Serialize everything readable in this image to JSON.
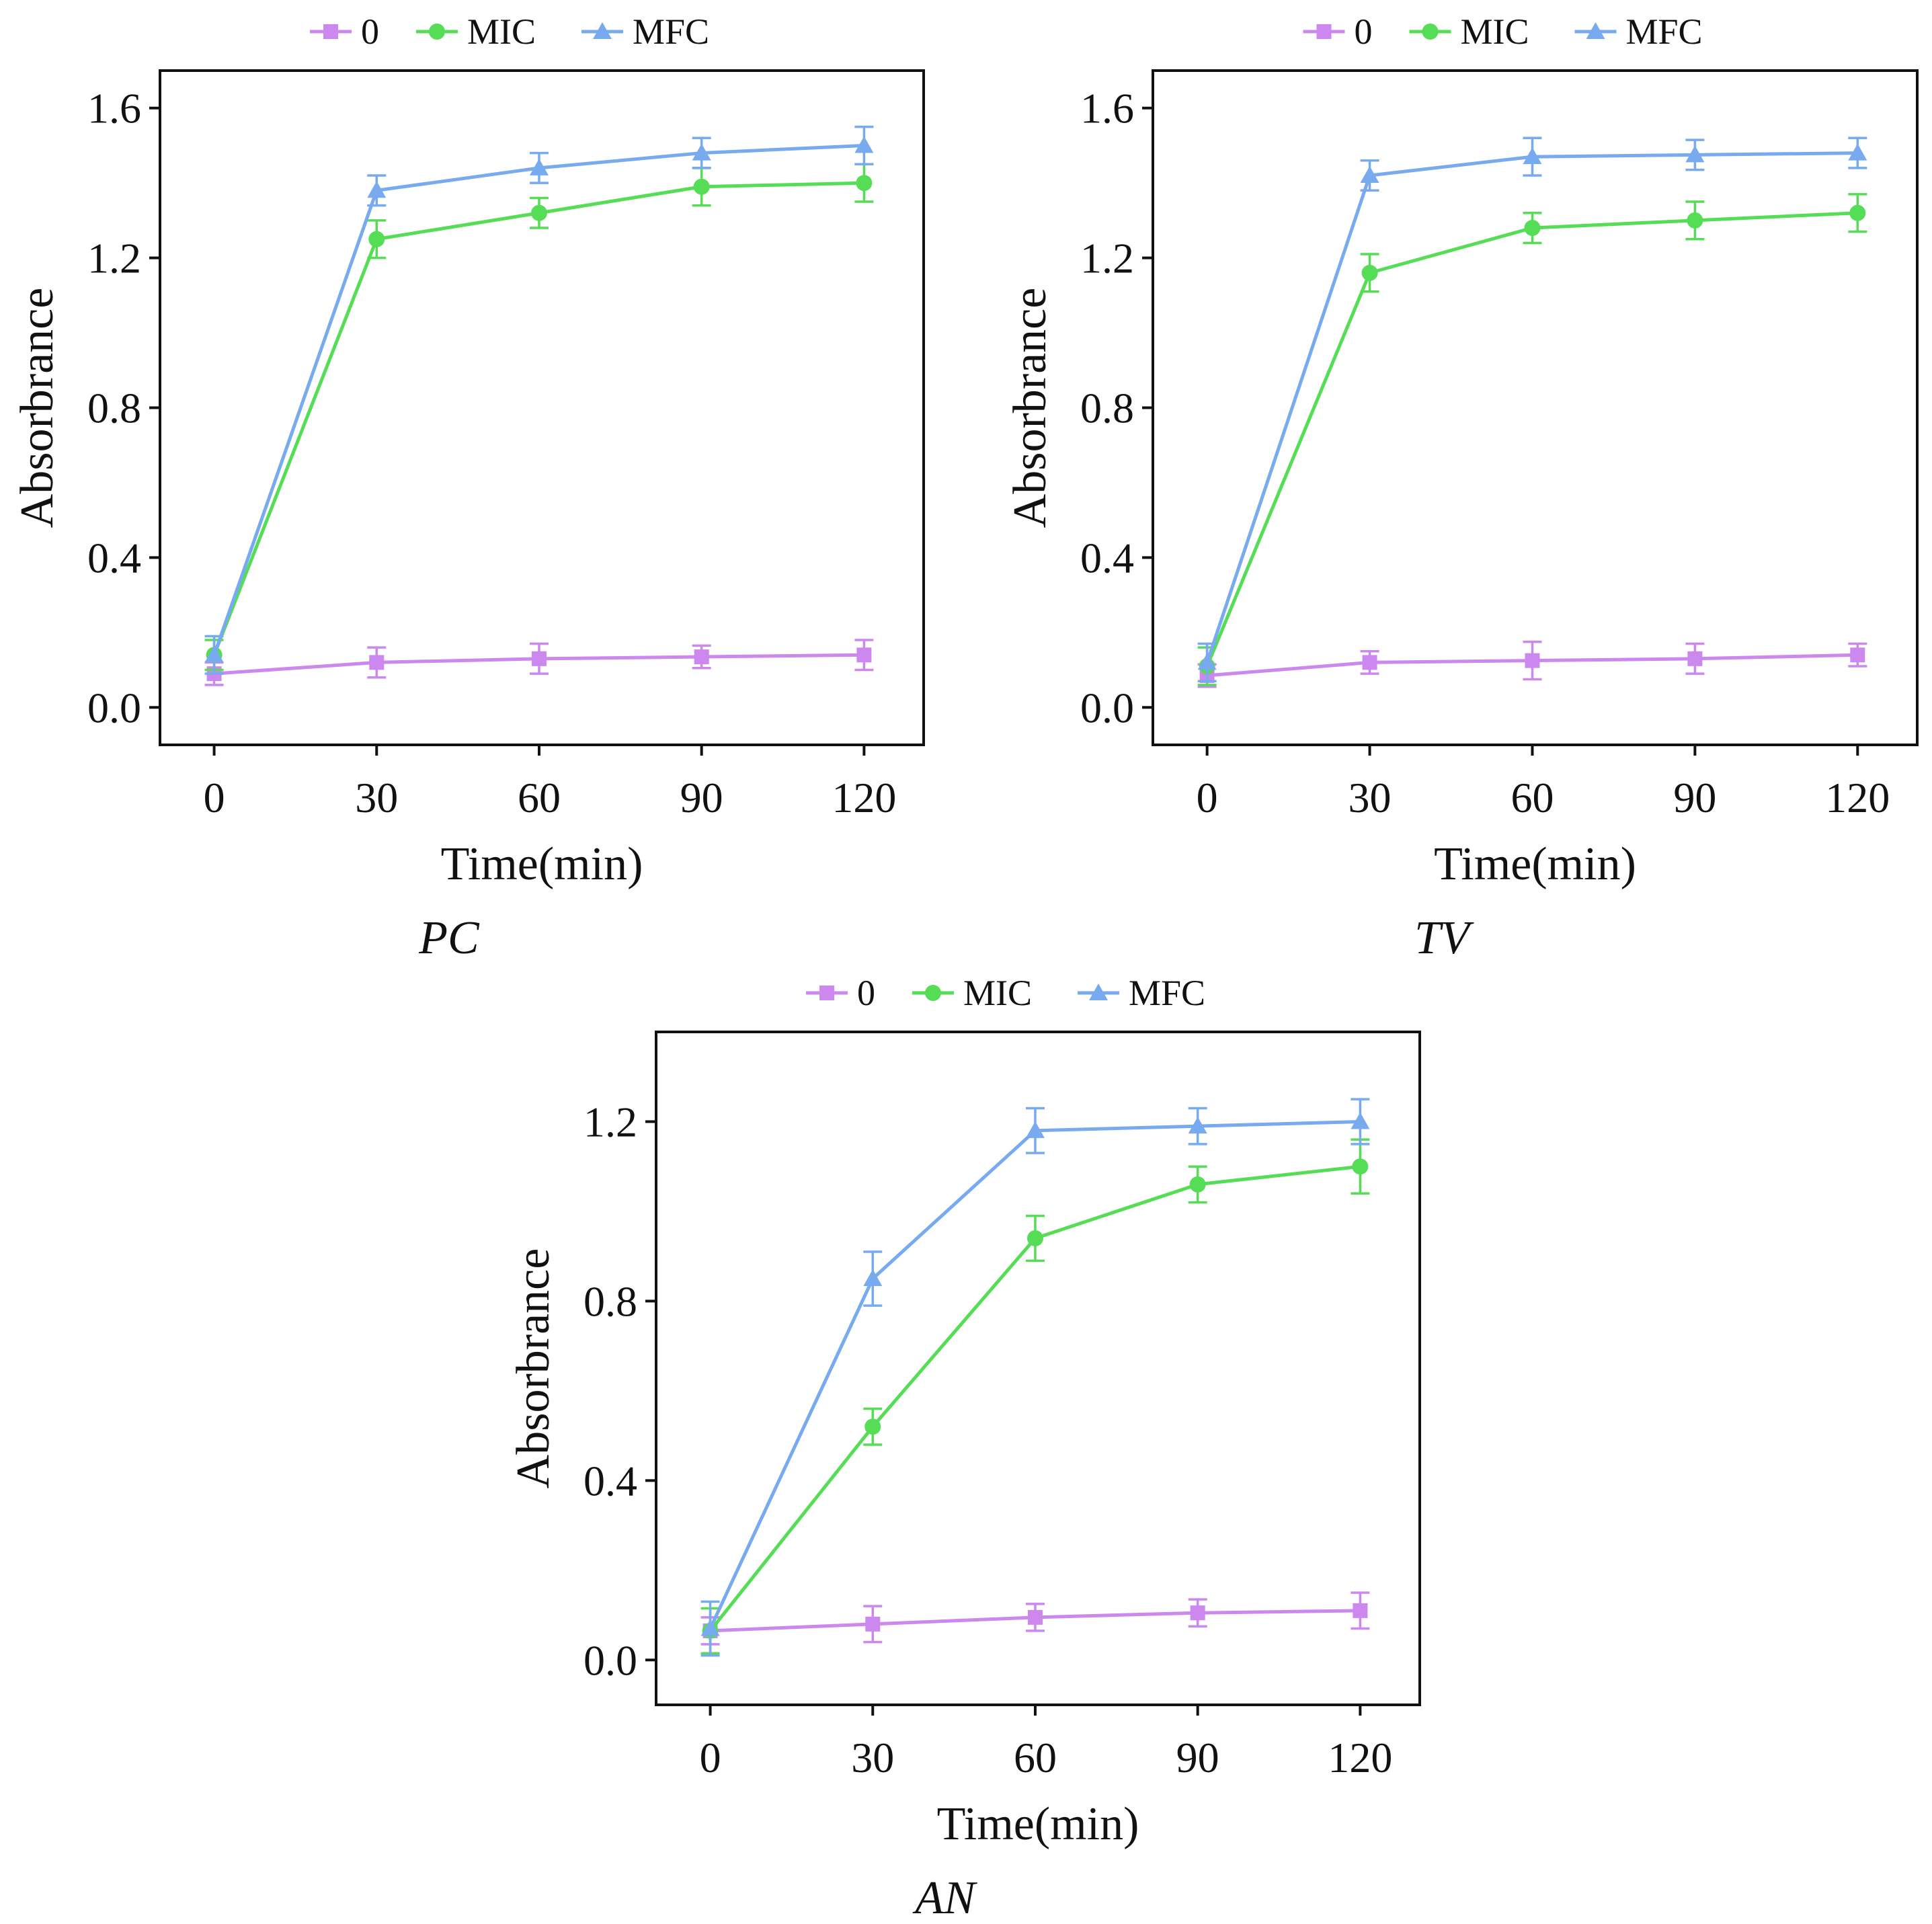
{
  "colors": {
    "series_0": "#cc88ee",
    "series_MIC": "#55dd55",
    "series_MFC": "#77aaee",
    "axis": "#111111"
  },
  "chart_data": [
    {
      "type": "line",
      "panel_label": "PC",
      "xlabel": "Time(min)",
      "ylabel": "Absorbrance",
      "x": [
        0,
        30,
        60,
        90,
        120
      ],
      "x_tick_labels": [
        "0",
        "30",
        "60",
        "90",
        "120"
      ],
      "xlim": [
        -10,
        131
      ],
      "ylim": [
        -0.1,
        1.7
      ],
      "y_ticks": [
        0.0,
        0.4,
        0.8,
        1.2,
        1.6
      ],
      "y_tick_labels": [
        "0.0",
        "0.4",
        "0.8",
        "1.2",
        "1.6"
      ],
      "legend_position": "top",
      "series": [
        {
          "name": "0",
          "marker": "square",
          "values": [
            0.09,
            0.12,
            0.13,
            0.135,
            0.14
          ],
          "errors": [
            0.03,
            0.04,
            0.04,
            0.03,
            0.04
          ]
        },
        {
          "name": "MIC",
          "marker": "circle",
          "values": [
            0.14,
            1.25,
            1.32,
            1.39,
            1.4
          ],
          "errors": [
            0.04,
            0.05,
            0.04,
            0.05,
            0.05
          ]
        },
        {
          "name": "MFC",
          "marker": "triangle",
          "values": [
            0.14,
            1.38,
            1.44,
            1.48,
            1.5
          ],
          "errors": [
            0.05,
            0.04,
            0.04,
            0.04,
            0.05
          ]
        }
      ]
    },
    {
      "type": "line",
      "panel_label": "TV",
      "xlabel": "Time(min)",
      "ylabel": "Absorbrance",
      "x": [
        0,
        30,
        60,
        90,
        120
      ],
      "x_tick_labels": [
        "0",
        "30",
        "60",
        "90",
        "120"
      ],
      "xlim": [
        -10,
        131
      ],
      "ylim": [
        -0.1,
        1.7
      ],
      "y_ticks": [
        0.0,
        0.4,
        0.8,
        1.2,
        1.6
      ],
      "y_tick_labels": [
        "0.0",
        "0.4",
        "0.8",
        "1.2",
        "1.6"
      ],
      "legend_position": "top",
      "series": [
        {
          "name": "0",
          "marker": "square",
          "values": [
            0.085,
            0.12,
            0.125,
            0.13,
            0.14
          ],
          "errors": [
            0.03,
            0.03,
            0.05,
            0.04,
            0.03
          ]
        },
        {
          "name": "MIC",
          "marker": "circle",
          "values": [
            0.11,
            1.16,
            1.28,
            1.3,
            1.32
          ],
          "errors": [
            0.05,
            0.05,
            0.04,
            0.05,
            0.05
          ]
        },
        {
          "name": "MFC",
          "marker": "triangle",
          "values": [
            0.12,
            1.42,
            1.47,
            1.475,
            1.48
          ],
          "errors": [
            0.05,
            0.04,
            0.05,
            0.04,
            0.04
          ]
        }
      ]
    },
    {
      "type": "line",
      "panel_label": "AN",
      "xlabel": "Time(min)",
      "ylabel": "Absorbrance",
      "x": [
        0,
        30,
        60,
        90,
        120
      ],
      "x_tick_labels": [
        "0",
        "30",
        "60",
        "90",
        "120"
      ],
      "xlim": [
        -10,
        131
      ],
      "ylim": [
        -0.1,
        1.4
      ],
      "y_ticks": [
        0.0,
        0.4,
        0.8,
        1.2
      ],
      "y_tick_labels": [
        "0.0",
        "0.4",
        "0.8",
        "1.2"
      ],
      "legend_position": "top",
      "series": [
        {
          "name": "0",
          "marker": "square",
          "values": [
            0.065,
            0.08,
            0.095,
            0.105,
            0.11
          ],
          "errors": [
            0.03,
            0.04,
            0.03,
            0.03,
            0.04
          ]
        },
        {
          "name": "MIC",
          "marker": "circle",
          "values": [
            0.065,
            0.52,
            0.94,
            1.06,
            1.1
          ],
          "errors": [
            0.05,
            0.04,
            0.05,
            0.04,
            0.06
          ]
        },
        {
          "name": "MFC",
          "marker": "triangle",
          "values": [
            0.07,
            0.85,
            1.18,
            1.19,
            1.2
          ],
          "errors": [
            0.06,
            0.06,
            0.05,
            0.04,
            0.05
          ]
        }
      ]
    }
  ]
}
